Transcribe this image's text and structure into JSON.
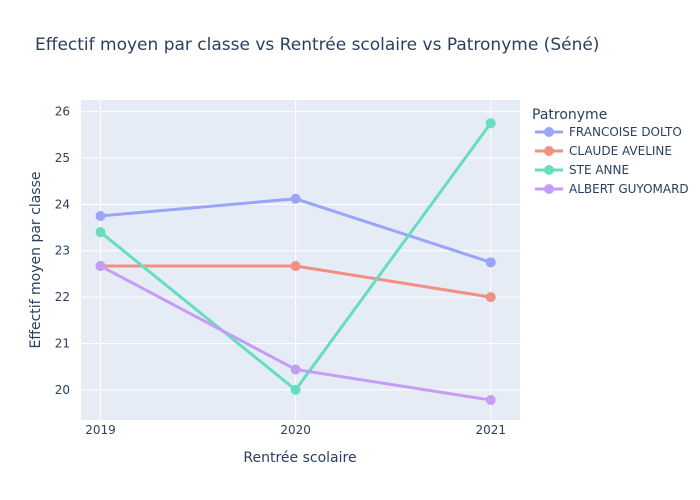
{
  "chart_data": {
    "type": "line",
    "title": "Effectif moyen par classe vs Rentrée scolaire vs Patronyme (Séné)",
    "xlabel": "Rentrée scolaire",
    "ylabel": "Effectif moyen par classe",
    "x": [
      "2019",
      "2020",
      "2021"
    ],
    "xlim": [
      2018.9,
      2021.15
    ],
    "ylim": [
      19.35,
      26.25
    ],
    "yticks": [
      20,
      21,
      22,
      23,
      24,
      25,
      26
    ],
    "grid": true,
    "legend": {
      "title": "Patronyme",
      "placement": "right"
    },
    "series": [
      {
        "name": "FRANCOISE DOLTO",
        "color": "#9aa4f8",
        "values": [
          23.75,
          24.12,
          22.75
        ]
      },
      {
        "name": "CLAUDE AVELINE",
        "color": "#f08f82",
        "values": [
          22.67,
          22.67,
          22.0
        ]
      },
      {
        "name": "STE ANNE",
        "color": "#66ddbf",
        "values": [
          23.4,
          20.0,
          25.75
        ]
      },
      {
        "name": "ALBERT GUYOMARD",
        "color": "#c59cf6",
        "values": [
          22.67,
          20.44,
          19.78
        ]
      }
    ]
  }
}
